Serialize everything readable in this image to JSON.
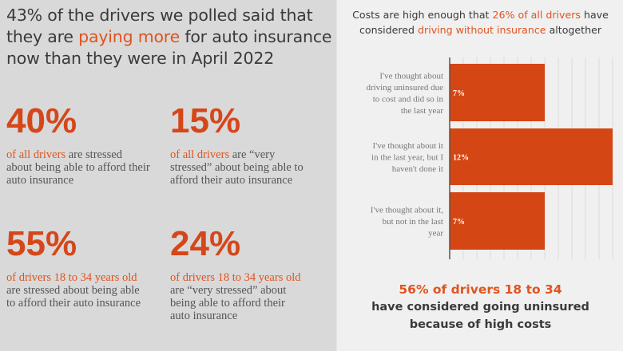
{
  "headline": {
    "pre": "43% of the drivers we polled said that they are ",
    "highlight": "paying more",
    "post": " for auto insurance now than they were in April 2022"
  },
  "stats": [
    {
      "value": "40%",
      "highlight": "of all drivers",
      "text": " are stressed about being able to afford their auto insurance"
    },
    {
      "value": "15%",
      "highlight": "of all drivers",
      "text": " are “very stressed” about being able to afford their auto insurance"
    },
    {
      "value": "55%",
      "highlight": "of drivers 18 to 34 years old",
      "text": " are stressed about being able to afford their auto insurance"
    },
    {
      "value": "24%",
      "highlight": "of drivers 18 to 34 years old",
      "text": " are “very stressed” about being able to afford their auto insurance"
    }
  ],
  "right_title": {
    "a": "Costs are high enough that ",
    "b": "26% of all drivers",
    "c": " have considered ",
    "d": "driving without insurance",
    "e": " altogether"
  },
  "chart_data": {
    "type": "bar",
    "orientation": "horizontal",
    "categories": [
      "I've thought about driving uninsured due to cost and did so in the last year",
      "I've thought about it in the last year, but I haven't done it",
      "I've thought about it, but not in the last year"
    ],
    "category_lines": [
      [
        "I've thought about",
        "driving uninsured due",
        "to cost and did so in",
        "the last year"
      ],
      [
        "I've thought about it",
        "in the last year, but I",
        "haven't done it"
      ],
      [
        "I've thought about it,",
        "but not in the last",
        "year"
      ]
    ],
    "values": [
      7,
      12,
      7
    ],
    "labels": [
      "7%",
      "12%",
      "7%"
    ],
    "xlim": [
      0,
      12
    ],
    "grid": true,
    "bar_color": "#d44614"
  },
  "footer": {
    "highlight": "56% of drivers 18 to 34",
    "line2": "have considered going uninsured",
    "line3": "because of high costs"
  },
  "colors": {
    "accent": "#e0541f",
    "left_bg": "#d9d9d9",
    "right_bg": "#f0f0f0"
  }
}
